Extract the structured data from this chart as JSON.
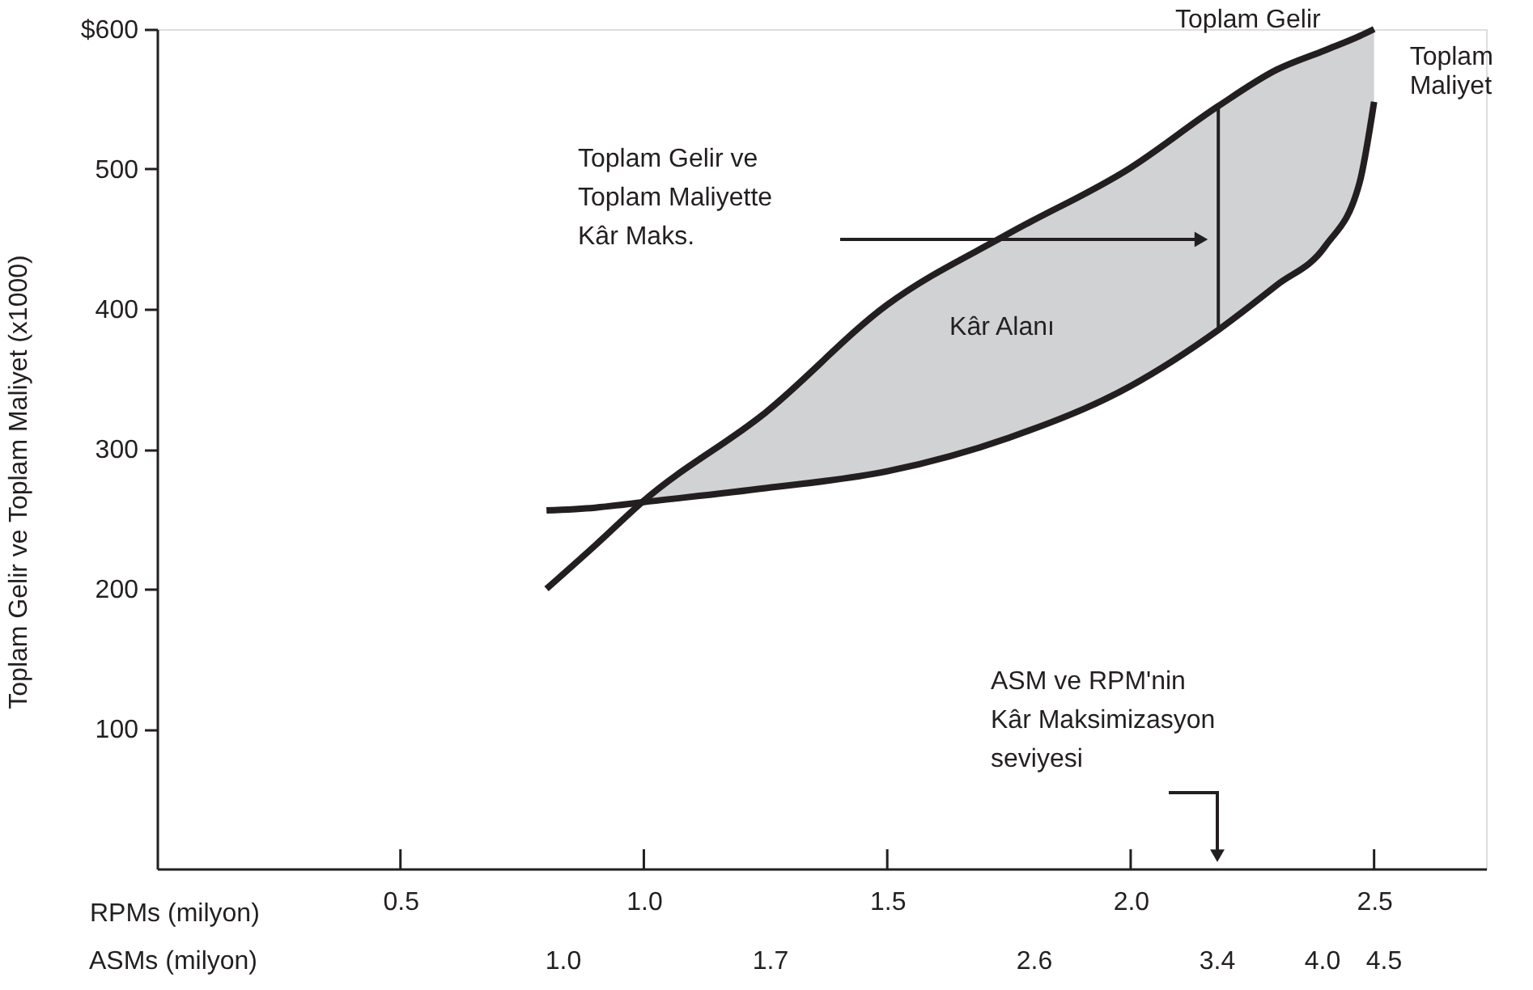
{
  "chart_data": {
    "type": "line",
    "ylabel": "Toplam Gelir ve Toplam Maliyet (x1000)",
    "xlabel": "RPMs (milyon)",
    "x": [
      0.8,
      0.9,
      1.0,
      1.25,
      1.5,
      1.75,
      2.0,
      2.18,
      2.3,
      2.4,
      2.47,
      2.5
    ],
    "series": [
      {
        "name": "Toplam Gelir",
        "color": "#231f20",
        "values": [
          200,
          231,
          263,
          326,
          403,
          454,
          501,
          545,
          571,
          585,
          595,
          600
        ],
        "lower": [
          null,
          null,
          262,
          272,
          284,
          308,
          345,
          385,
          417,
          445,
          490,
          548
        ],
        "upper": [
          null,
          null,
          263,
          326,
          403,
          454,
          501,
          545,
          571,
          585,
          595,
          600
        ]
      },
      {
        "name": "Toplam Maliyet",
        "color": "#231f20",
        "values": [
          256,
          258,
          262,
          272,
          284,
          308,
          345,
          385,
          417,
          445,
          490,
          548
        ]
      },
      {
        "type": "line",
        "color": "#231f20",
        "x": [
          2.18,
          2.18
        ],
        "values": [
          385,
          545
        ]
      }
    ],
    "xlim": [
      0,
      2.73
    ],
    "xticks": [
      0.5,
      {
        "value": 1,
        "label": "1.0"
      },
      1.5,
      {
        "value": 2,
        "label": "2.0"
      },
      2.5
    ],
    "ylim": [
      0,
      600
    ],
    "yticks": [
      100,
      200,
      300,
      400,
      500,
      {
        "value": 600,
        "label": "$600"
      }
    ],
    "annotations": [
      "Toplam Gelir ve\nToplam Maliyette\nKâr Maks.",
      "Kâr Alanı",
      "ASM ve RPM'nin\nKâr Maksimizasyon\nseviyesi",
      "ASMs (milyon)",
      "1.0",
      "1.7",
      "2.6",
      "3.4",
      "4.0",
      "4.5"
    ]
  }
}
